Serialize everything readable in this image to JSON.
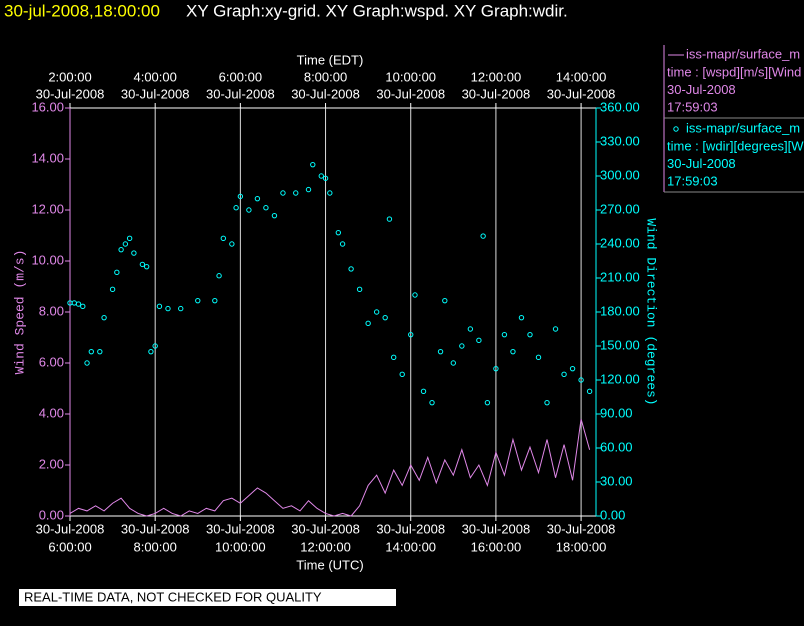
{
  "chart_data": {
    "type": "line",
    "timestamp": "30-jul-2008,18:00:00",
    "title": "XY Graph:xy-grid.  XY Graph:wspd.  XY Graph:wdir.",
    "x_label_top": "Time (EDT)",
    "x_label": "Time (UTC)",
    "y_label": "Wind Speed (m/s)",
    "y2_label": "Wind Direction (degrees)",
    "footnote": "REAL-TIME DATA, NOT CHECKED FOR QUALITY",
    "grid": true,
    "xlim": [
      6,
      18.35
    ],
    "xticks": [
      {
        "value": 6,
        "date": "30-Jul-2008",
        "label": "6:00:00"
      },
      {
        "value": 8,
        "date": "30-Jul-2008",
        "label": "8:00:00"
      },
      {
        "value": 10,
        "date": "30-Jul-2008",
        "label": "10:00:00"
      },
      {
        "value": 12,
        "date": "30-Jul-2008",
        "label": "12:00:00"
      },
      {
        "value": 14,
        "date": "30-Jul-2008",
        "label": "14:00:00"
      },
      {
        "value": 16,
        "date": "30-Jul-2008",
        "label": "16:00:00"
      },
      {
        "value": 18,
        "date": "30-Jul-2008",
        "label": "18:00:00"
      }
    ],
    "x2ticks": [
      {
        "value": 6,
        "date": "30-Jul-2008",
        "label": "2:00:00"
      },
      {
        "value": 8,
        "date": "30-Jul-2008",
        "label": "4:00:00"
      },
      {
        "value": 10,
        "date": "30-Jul-2008",
        "label": "6:00:00"
      },
      {
        "value": 12,
        "date": "30-Jul-2008",
        "label": "8:00:00"
      },
      {
        "value": 14,
        "date": "30-Jul-2008",
        "label": "10:00:00"
      },
      {
        "value": 16,
        "date": "30-Jul-2008",
        "label": "12:00:00"
      },
      {
        "value": 18,
        "date": "30-Jul-2008",
        "label": "14:00:00"
      }
    ],
    "ylim": [
      0,
      16
    ],
    "yticks": [
      {
        "value": 0,
        "label": "0.00"
      },
      {
        "value": 2,
        "label": "2.00"
      },
      {
        "value": 4,
        "label": "4.00"
      },
      {
        "value": 6,
        "label": "6.00"
      },
      {
        "value": 8,
        "label": "8.00"
      },
      {
        "value": 10,
        "label": "10.00"
      },
      {
        "value": 12,
        "label": "12.00"
      },
      {
        "value": 14,
        "label": "14.00"
      },
      {
        "value": 16,
        "label": "16.00"
      }
    ],
    "y2lim": [
      0,
      360
    ],
    "y2ticks": [
      {
        "value": 0,
        "label": "0.00"
      },
      {
        "value": 30,
        "label": "30.00"
      },
      {
        "value": 60,
        "label": "60.00"
      },
      {
        "value": 90,
        "label": "90.00"
      },
      {
        "value": 120,
        "label": "120.00"
      },
      {
        "value": 150,
        "label": "150.00"
      },
      {
        "value": 180,
        "label": "180.00"
      },
      {
        "value": 210,
        "label": "210.00"
      },
      {
        "value": 240,
        "label": "240.00"
      },
      {
        "value": 270,
        "label": "270.00"
      },
      {
        "value": 300,
        "label": "300.00"
      },
      {
        "value": 330,
        "label": "330.00"
      },
      {
        "value": 360,
        "label": "360.00"
      }
    ],
    "series": [
      {
        "name": "iss-mapr/surface_m",
        "legend": [
          "time : [wspd][m/s][Wind",
          "30-Jul-2008",
          "17:59:03"
        ],
        "type": "line",
        "axis": "y",
        "color": "#e088e8",
        "x": [
          6.0,
          6.2,
          6.4,
          6.6,
          6.8,
          7.0,
          7.2,
          7.4,
          7.6,
          7.8,
          8.0,
          8.2,
          8.4,
          8.6,
          8.8,
          9.0,
          9.2,
          9.4,
          9.6,
          9.8,
          10.0,
          10.2,
          10.4,
          10.6,
          10.8,
          11.0,
          11.2,
          11.4,
          11.6,
          11.8,
          12.0,
          12.2,
          12.4,
          12.6,
          12.8,
          13.0,
          13.2,
          13.4,
          13.6,
          13.8,
          14.0,
          14.2,
          14.4,
          14.6,
          14.8,
          15.0,
          15.2,
          15.4,
          15.6,
          15.8,
          16.0,
          16.2,
          16.4,
          16.6,
          16.8,
          17.0,
          17.2,
          17.4,
          17.6,
          17.8,
          18.0,
          18.2
        ],
        "values": [
          0.1,
          0.3,
          0.2,
          0.4,
          0.2,
          0.5,
          0.7,
          0.3,
          0.1,
          0.0,
          0.1,
          0.3,
          0.1,
          0.0,
          0.2,
          0.1,
          0.3,
          0.2,
          0.6,
          0.7,
          0.5,
          0.8,
          1.1,
          0.9,
          0.6,
          0.3,
          0.4,
          0.2,
          0.6,
          0.3,
          0.1,
          0.0,
          0.1,
          0.0,
          0.4,
          1.2,
          1.6,
          0.9,
          1.8,
          1.2,
          2.0,
          1.4,
          2.3,
          1.3,
          2.2,
          1.6,
          2.6,
          1.5,
          2.0,
          1.2,
          2.5,
          1.6,
          3.0,
          1.8,
          2.7,
          1.7,
          3.0,
          1.5,
          2.8,
          1.4,
          3.8,
          2.6
        ]
      },
      {
        "name": "iss-mapr/surface_m",
        "legend": [
          "time : [wdir][degrees][W",
          "30-Jul-2008",
          "17:59:03"
        ],
        "type": "scatter",
        "axis": "y2",
        "color": "#00ffff",
        "x": [
          6.0,
          6.1,
          6.2,
          6.3,
          6.4,
          6.5,
          6.7,
          6.8,
          7.0,
          7.1,
          7.2,
          7.3,
          7.4,
          7.5,
          7.7,
          7.8,
          7.9,
          8.0,
          8.1,
          8.3,
          8.6,
          9.0,
          9.4,
          9.5,
          9.6,
          9.8,
          9.9,
          10.0,
          10.2,
          10.4,
          10.6,
          10.8,
          11.0,
          11.3,
          11.6,
          11.7,
          11.9,
          12.0,
          12.1,
          12.3,
          12.4,
          12.6,
          12.8,
          13.0,
          13.2,
          13.4,
          13.5,
          13.6,
          13.8,
          14.0,
          14.1,
          14.3,
          14.5,
          14.7,
          14.8,
          15.0,
          15.2,
          15.4,
          15.6,
          15.7,
          15.8,
          16.0,
          16.2,
          16.4,
          16.6,
          16.8,
          17.0,
          17.2,
          17.4,
          17.6,
          17.8,
          18.0,
          18.2
        ],
        "values": [
          188,
          188,
          187,
          185,
          135,
          145,
          145,
          175,
          200,
          215,
          235,
          240,
          245,
          232,
          222,
          220,
          145,
          150,
          185,
          183,
          183,
          190,
          190,
          212,
          245,
          240,
          272,
          282,
          270,
          280,
          272,
          265,
          285,
          285,
          288,
          310,
          300,
          298,
          285,
          250,
          240,
          218,
          200,
          170,
          180,
          175,
          262,
          140,
          125,
          160,
          195,
          110,
          100,
          145,
          190,
          135,
          150,
          165,
          155,
          247,
          100,
          130,
          160,
          145,
          175,
          160,
          140,
          100,
          165,
          125,
          130,
          120,
          110
        ]
      }
    ]
  }
}
